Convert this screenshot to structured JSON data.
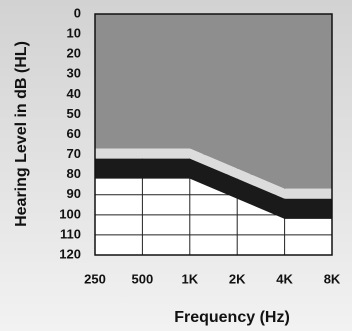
{
  "chart_data": {
    "type": "area",
    "x_label": "Frequency (Hz)",
    "y_label": "Hearing Level in dB (HL)",
    "categories": [
      "250",
      "500",
      "1K",
      "2K",
      "4K",
      "8K"
    ],
    "series": [
      {
        "color": "#8e8e8e",
        "values": [
          67,
          67,
          67,
          77,
          87,
          87
        ]
      },
      {
        "color": "#dcdcdc",
        "values": [
          72,
          72,
          72,
          82,
          92,
          92
        ]
      },
      {
        "color": "#1a1a1a",
        "values": [
          82,
          82,
          82,
          92,
          102,
          102
        ]
      }
    ],
    "ylim": [
      0,
      120
    ],
    "yticks": [
      0,
      10,
      20,
      30,
      40,
      50,
      60,
      70,
      80,
      90,
      100,
      110,
      120
    ],
    "y_inverted": true,
    "grid": true
  }
}
